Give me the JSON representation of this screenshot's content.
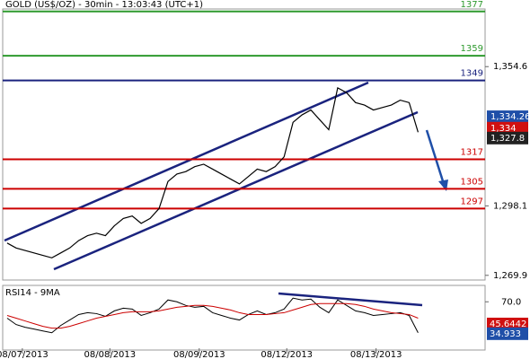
{
  "chart_data": [
    {
      "type": "line",
      "title": "GOLD (US$/OZ) - 30min - 13:03:43 (UTC+1)",
      "x": [
        0,
        1,
        2,
        3,
        4,
        5,
        6,
        7,
        8,
        9,
        10,
        11,
        12,
        13,
        14,
        15,
        16,
        17,
        18,
        19,
        20,
        21,
        22,
        23,
        24,
        25,
        26,
        27,
        28,
        29,
        30,
        31,
        32,
        33,
        34,
        35,
        36,
        37,
        38,
        39,
        40,
        41,
        42,
        43,
        44,
        45,
        46
      ],
      "series": [
        {
          "color": "#000000",
          "values": [
            1283,
            1281,
            1280,
            1279,
            1278,
            1277,
            1279,
            1281,
            1284,
            1286,
            1287,
            1286,
            1290,
            1293,
            1294,
            1291,
            1293,
            1297,
            1308,
            1311,
            1312,
            1314,
            1315,
            1313,
            1311,
            1309,
            1307,
            1310,
            1313,
            1312,
            1314,
            1318,
            1332,
            1335,
            1337,
            1333,
            1329,
            1346,
            1344,
            1340,
            1339,
            1337,
            1338,
            1339,
            1341,
            1340,
            1328
          ]
        }
      ],
      "xlim": [
        -0.5,
        53.5
      ],
      "xticks": [
        {
          "value": 1.7,
          "label": "08/07/2013"
        },
        {
          "value": 11.5,
          "label": "08/08/2013"
        },
        {
          "value": 21.5,
          "label": "08/09/2013"
        },
        {
          "value": 31.3,
          "label": "08/12/2013"
        },
        {
          "value": 41.3,
          "label": "08/13/2013"
        }
      ],
      "ylim": [
        1268,
        1378
      ],
      "yticks": [
        {
          "value": 1354.6,
          "label": "1,354.6"
        },
        {
          "value": 1298.1,
          "label": "1,298.1"
        },
        {
          "value": 1269.9,
          "label": "1,269.9"
        }
      ],
      "levels": [
        {
          "value": 1377,
          "label": "1377",
          "color": "#2e9a2e"
        },
        {
          "value": 1359,
          "label": "1359",
          "color": "#2e9a2e"
        },
        {
          "value": 1349,
          "label": "1349",
          "color": "#1a237e"
        },
        {
          "value": 1317,
          "label": "1317",
          "color": "#cc0000"
        },
        {
          "value": 1305,
          "label": "1305",
          "color": "#cc0000"
        },
        {
          "value": 1297,
          "label": "1297",
          "color": "#cc0000"
        }
      ],
      "price_tags": [
        {
          "value": 1334.26,
          "label": "1,334.26",
          "color": "#1f4fa8"
        },
        {
          "value": 1334,
          "label": "1,334",
          "color": "#d01010"
        },
        {
          "value": 1327.8,
          "label": "1,327.8",
          "color": "#222222"
        }
      ]
    },
    {
      "type": "line",
      "title": "RSI14 - 9MA",
      "series": [
        {
          "color": "#000000",
          "values": [
            52,
            45,
            42,
            40,
            38,
            36,
            44,
            50,
            56,
            58,
            57,
            54,
            60,
            63,
            62,
            55,
            58,
            62,
            72,
            70,
            66,
            64,
            65,
            58,
            55,
            52,
            50,
            56,
            60,
            56,
            58,
            62,
            74,
            72,
            73,
            64,
            58,
            72,
            66,
            60,
            58,
            55,
            56,
            57,
            58,
            55,
            36
          ]
        },
        {
          "color": "#cc0000",
          "values": [
            55,
            52,
            49,
            46,
            43,
            41,
            41,
            43,
            46,
            49,
            52,
            54,
            56,
            58,
            59,
            59,
            59,
            60,
            62,
            64,
            65,
            66,
            66,
            65,
            63,
            61,
            58,
            56,
            56,
            56,
            57,
            58,
            61,
            64,
            67,
            68,
            68,
            68,
            68,
            67,
            65,
            62,
            60,
            58,
            57,
            56,
            52
          ]
        }
      ],
      "ylim": [
        17,
        88
      ],
      "yticks": [
        {
          "value": 70,
          "label": "70.0"
        }
      ],
      "value_tags": [
        {
          "value": 45.6442,
          "label": "45.6442",
          "color": "#d01010"
        },
        {
          "value": 34.933,
          "label": "34.933",
          "color": "#1f4fa8"
        }
      ]
    }
  ]
}
